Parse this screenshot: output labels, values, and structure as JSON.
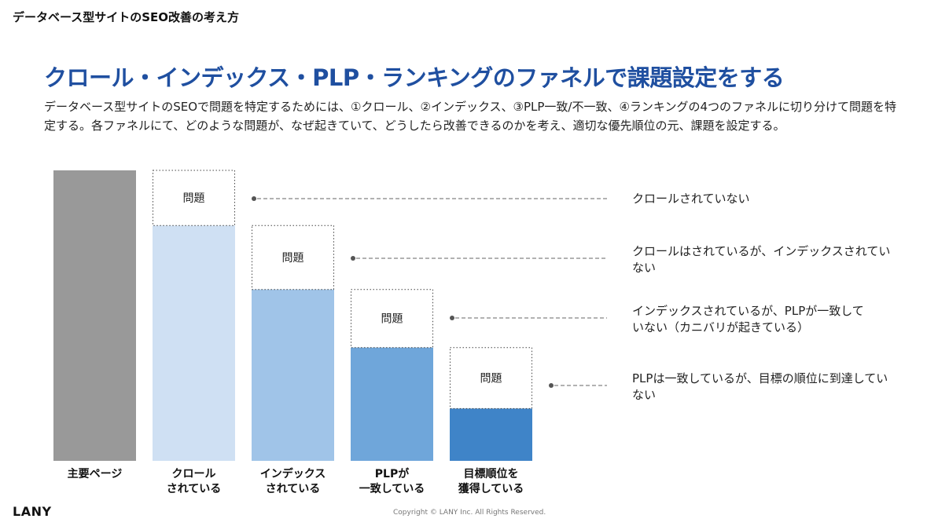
{
  "header": {
    "deck_title": "データベース型サイトのSEO改善の考え方"
  },
  "slide": {
    "title": "クロール・インデックス・PLP・ランキングのファネルで課題設定をする",
    "description": "データベース型サイトのSEOで問題を特定するためには、①クロール、②インデックス、③PLP一致/不一致、④ランキングの4つのファネルに切り分けて問題を特定する。各ファネルにて、どのような問題が、なぜ起きていて、どうしたら改善できるのかを考え、適切な優先順位の元、課題を設定する。"
  },
  "chart_data": {
    "type": "bar",
    "categories": [
      "主要ページ",
      "クロール\nされている",
      "インデックス\nされている",
      "PLPが\n一致している",
      "目標順位を\n獲得している"
    ],
    "values": [
      100,
      81,
      59,
      39,
      18
    ],
    "problem_label": "問題",
    "problem_values": [
      null,
      19,
      22,
      20,
      21
    ],
    "colors": [
      "#999999",
      "#cfe0f3",
      "#a0c4e8",
      "#6fa6da",
      "#3f84c8"
    ],
    "annotations": [
      "クロールされていない",
      "クロールはされているが、インデックスされていない",
      "インデックスされているが、PLPが一致していない（カニバリが起きている）",
      "PLPは一致しているが、目標の順位に到達していない"
    ]
  },
  "footer": {
    "logo": "LANY",
    "copyright": "Copyright © LANY Inc. All Rights Reserved."
  }
}
